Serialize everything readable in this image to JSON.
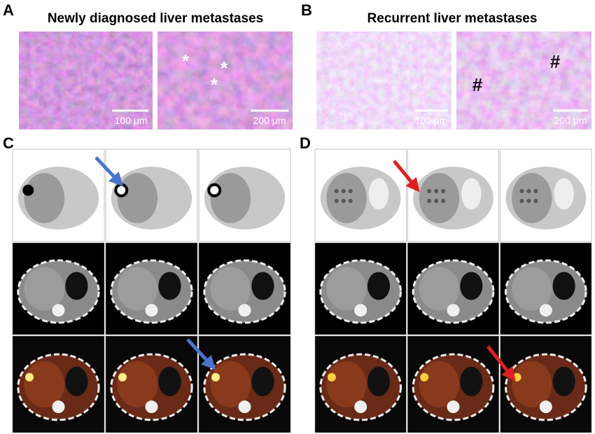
{
  "panels": [
    {
      "label": "A",
      "title": "Newly diagnosed liver metastases",
      "images": [
        {
          "scale_bar": "100 μm"
        },
        {
          "scale_bar": "200 μm",
          "markers": [
            "*",
            "*",
            "*"
          ]
        }
      ]
    },
    {
      "label": "B",
      "title": "Recurrent liver metastases",
      "images": [
        {
          "scale_bar": "100 μm"
        },
        {
          "scale_bar": "200 μm",
          "markers": [
            "#",
            "#"
          ]
        }
      ]
    },
    {
      "label": "C"
    },
    {
      "label": "D"
    }
  ]
}
